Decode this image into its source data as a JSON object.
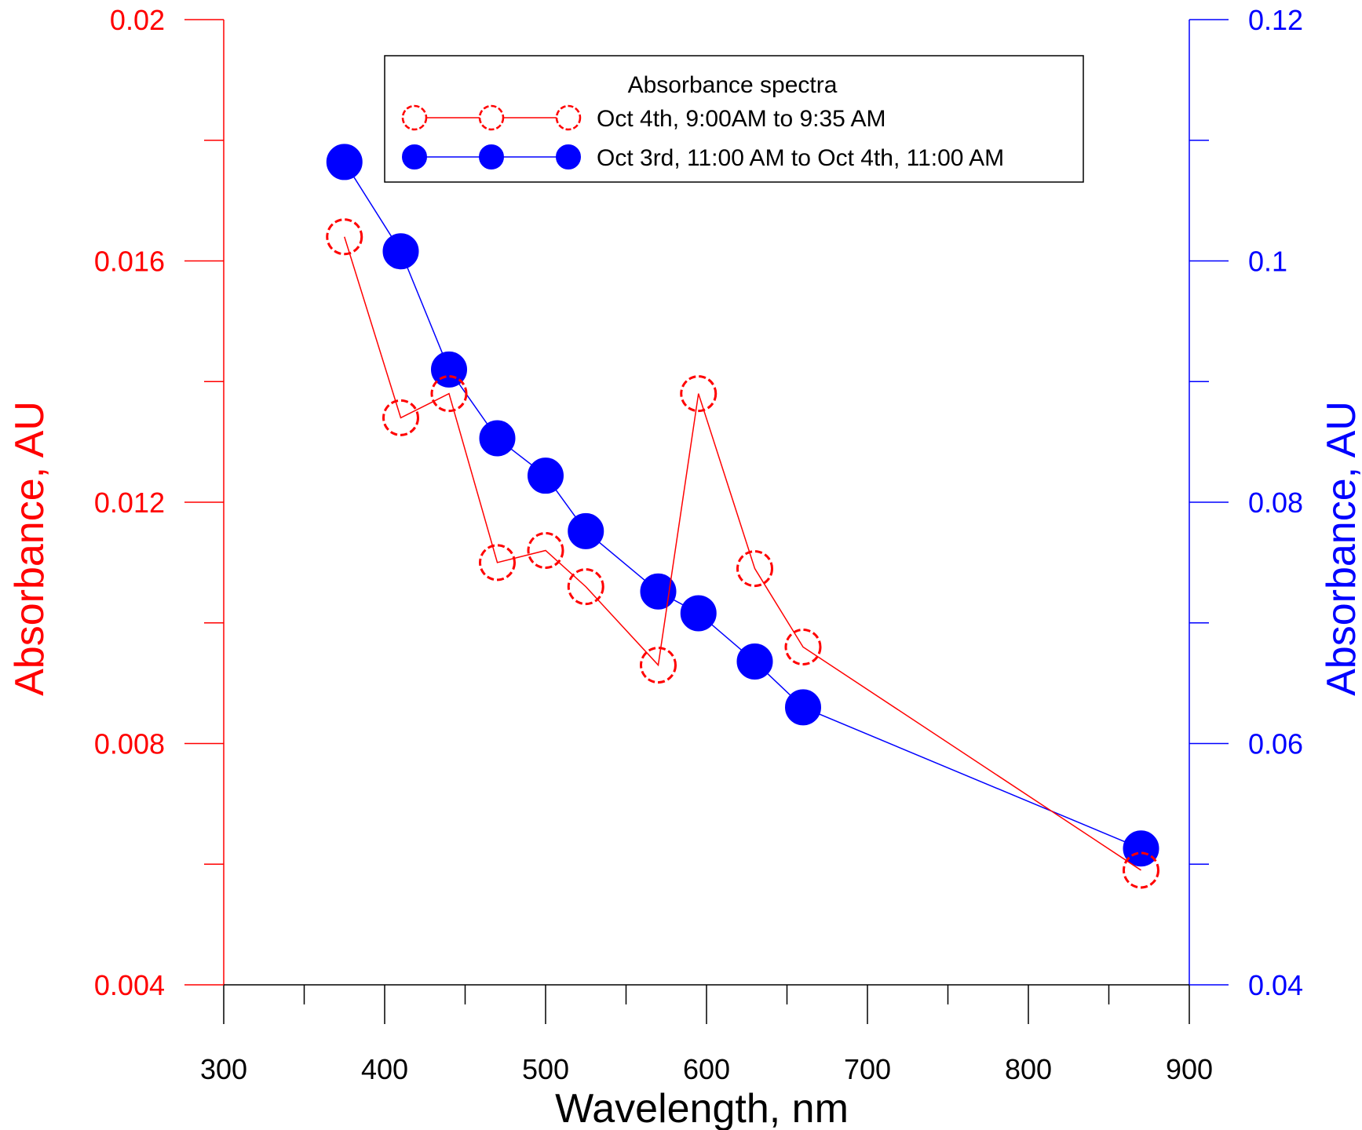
{
  "chart_data": {
    "type": "scatter",
    "title": "",
    "xlabel": "Wavelength, nm",
    "ylabel_left": "Absorbance, AU",
    "ylabel_right": "Absorbance, AU",
    "xlim": [
      300,
      900
    ],
    "ylim_left": [
      0.004,
      0.02
    ],
    "ylim_right": [
      0.04,
      0.12
    ],
    "x_ticks": [
      300,
      400,
      500,
      600,
      700,
      800,
      900
    ],
    "x_tick_labels": [
      "300",
      "400",
      "500",
      "600",
      "700",
      "800",
      "900"
    ],
    "x_minor_ticks": [
      350,
      450,
      550,
      650,
      750,
      850
    ],
    "y_left_ticks": [
      0.004,
      0.008,
      0.012,
      0.016,
      0.02
    ],
    "y_left_tick_labels": [
      "0.004",
      "0.008",
      "0.012",
      "0.016",
      "0.02"
    ],
    "y_left_minor_ticks": [
      0.006,
      0.01,
      0.014,
      0.018
    ],
    "y_right_ticks": [
      0.04,
      0.06,
      0.08,
      0.1,
      0.12
    ],
    "y_right_tick_labels": [
      "0.04",
      "0.06",
      "0.08",
      "0.1",
      "0.12"
    ],
    "y_right_minor_ticks": [
      0.05,
      0.07,
      0.09,
      0.11
    ],
    "grid": false,
    "legend": {
      "title": "Absorbance spectra",
      "placement": "top-center"
    },
    "series": [
      {
        "name": "Oct 4th, 9:00AM to 9:35 AM",
        "axis": "left",
        "color": "#ff0000",
        "marker": "open-circle",
        "x": [
          375,
          410,
          440,
          470,
          500,
          525,
          570,
          595,
          630,
          660,
          870
        ],
        "y": [
          0.0164,
          0.0134,
          0.0138,
          0.011,
          0.0112,
          0.0106,
          0.0093,
          0.0138,
          0.0109,
          0.0096,
          0.0059
        ]
      },
      {
        "name": "Oct 3rd, 11:00 AM to Oct 4th, 11:00 AM",
        "axis": "right",
        "color": "#0000ff",
        "marker": "filled-circle",
        "x": [
          375,
          410,
          440,
          470,
          500,
          525,
          570,
          595,
          630,
          660,
          870
        ],
        "y": [
          0.1082,
          0.1008,
          0.091,
          0.0853,
          0.0822,
          0.0776,
          0.0726,
          0.0708,
          0.0668,
          0.063,
          0.0513
        ]
      }
    ]
  }
}
